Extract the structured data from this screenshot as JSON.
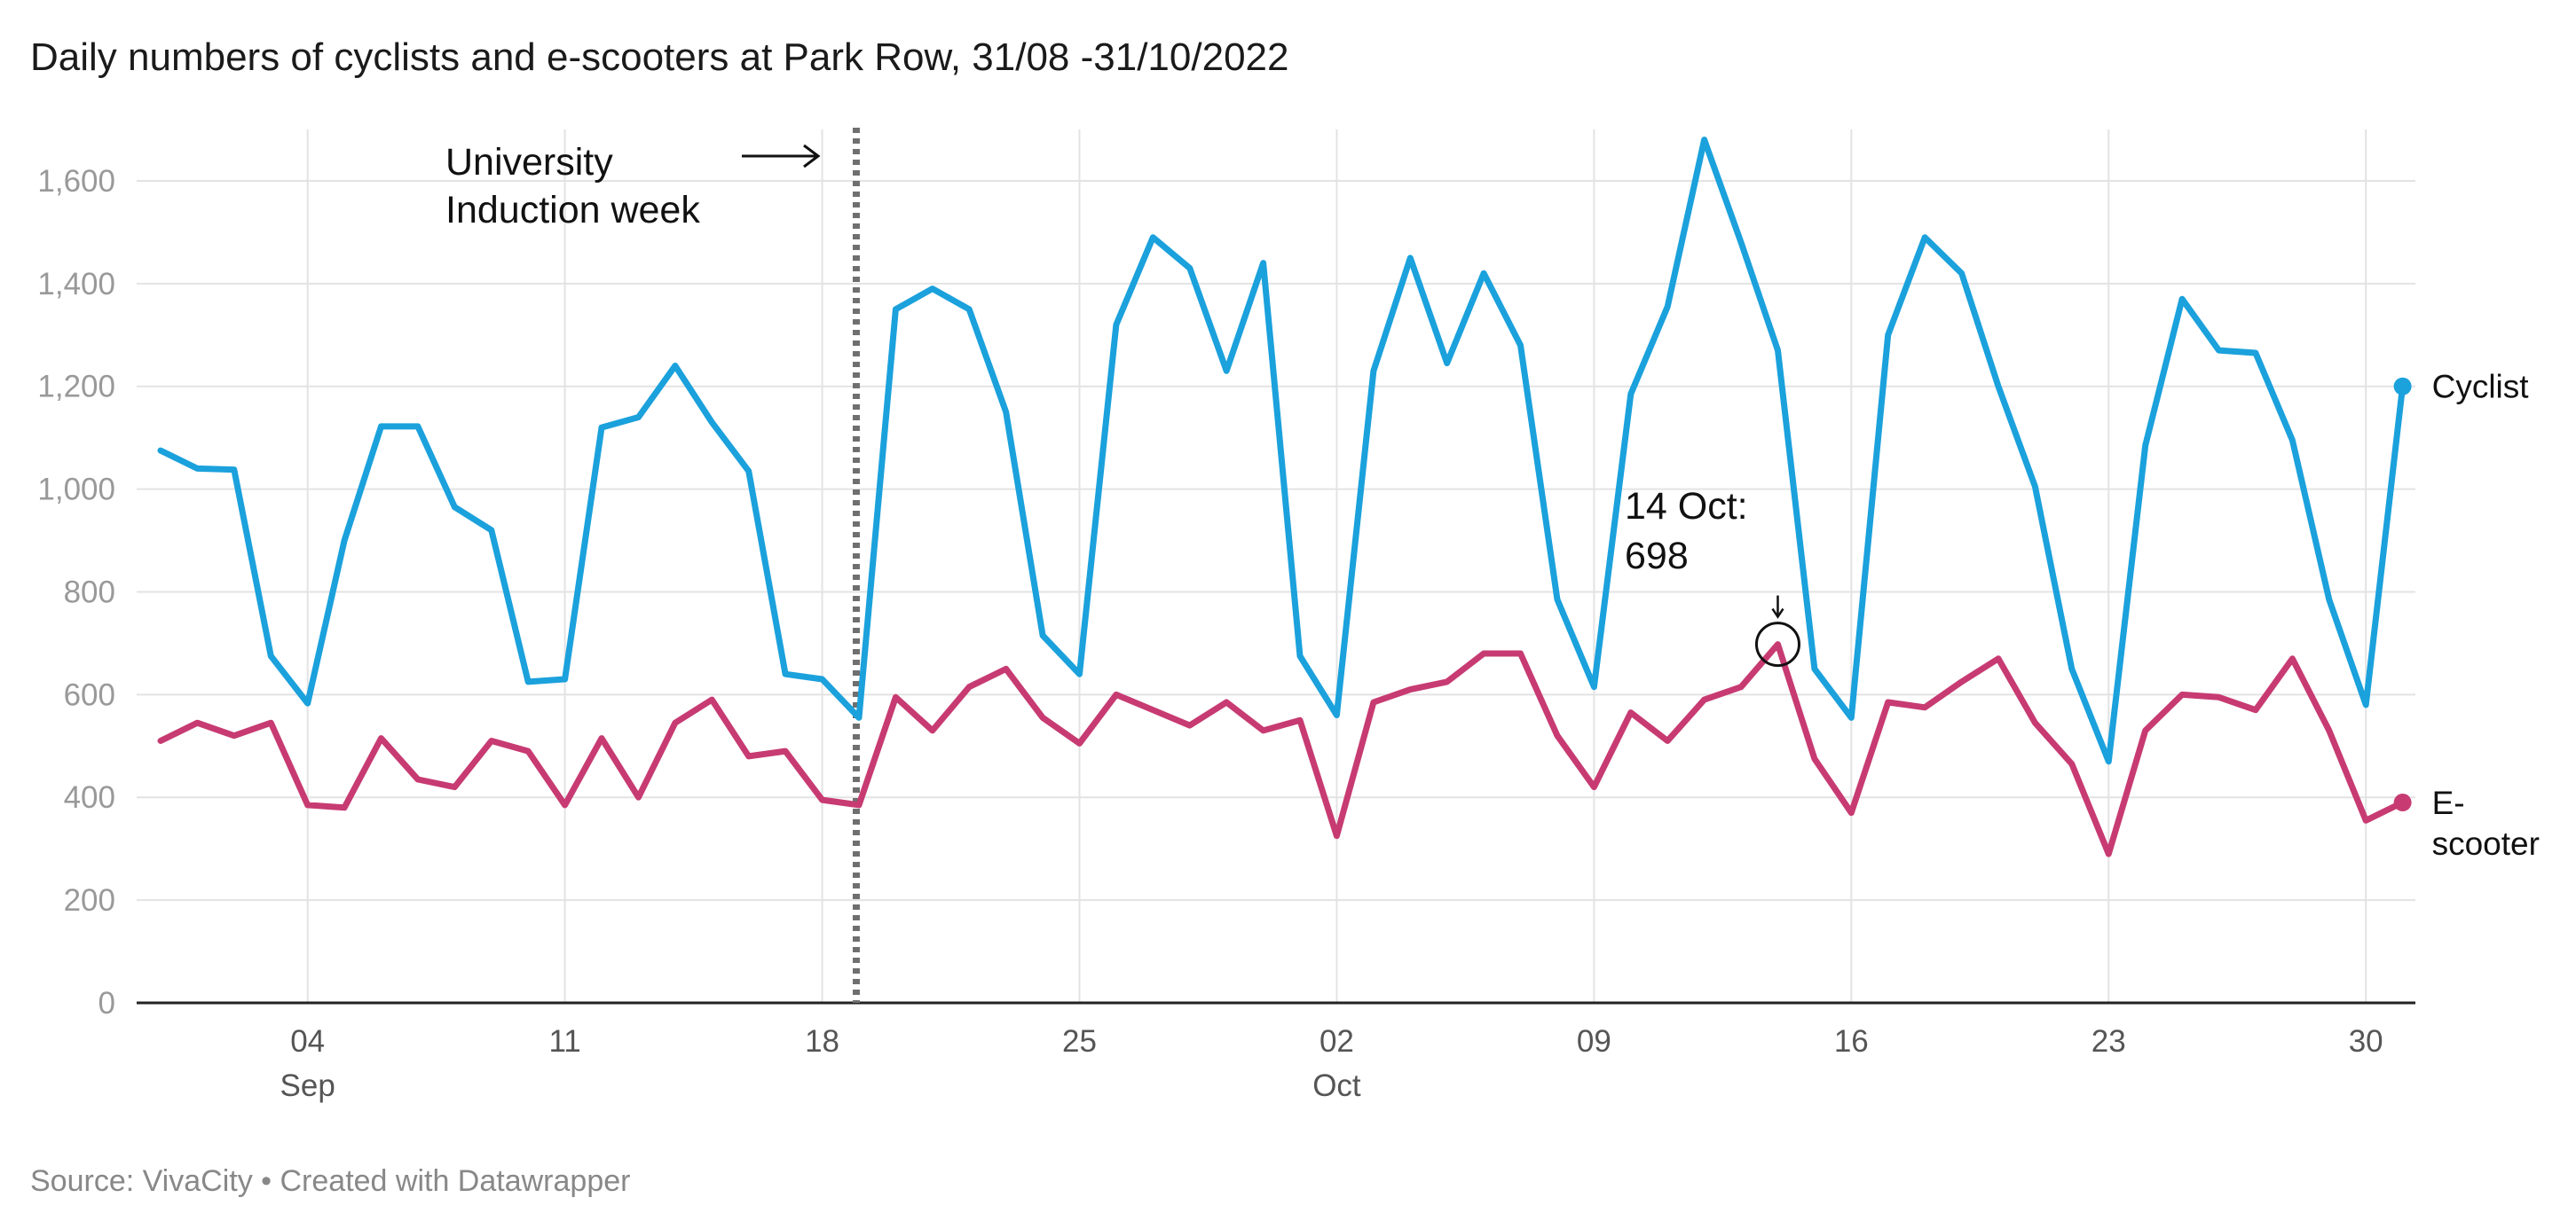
{
  "chart_data": {
    "type": "line",
    "title": "Daily numbers of cyclists and e-scooters at Park Row, 31/08 -31/10/2022",
    "source": "Source: VivaCity • Created with Datawrapper",
    "xlabel": "",
    "ylabel": "",
    "ylim": [
      0,
      1700
    ],
    "yticks": [
      0,
      200,
      400,
      600,
      800,
      1000,
      1200,
      1400,
      1600
    ],
    "ytick_labels": [
      "0",
      "200",
      "400",
      "600",
      "800",
      "1,000",
      "1,200",
      "1,400",
      "1,600"
    ],
    "x_start": "2022-08-31",
    "xticks": [
      {
        "date": "2022-09-04",
        "day": "04",
        "month": "Sep"
      },
      {
        "date": "2022-09-11",
        "day": "11",
        "month": ""
      },
      {
        "date": "2022-09-18",
        "day": "18",
        "month": ""
      },
      {
        "date": "2022-09-25",
        "day": "25",
        "month": ""
      },
      {
        "date": "2022-10-02",
        "day": "02",
        "month": "Oct"
      },
      {
        "date": "2022-10-09",
        "day": "09",
        "month": ""
      },
      {
        "date": "2022-10-16",
        "day": "16",
        "month": ""
      },
      {
        "date": "2022-10-23",
        "day": "23",
        "month": ""
      },
      {
        "date": "2022-10-30",
        "day": "30",
        "month": ""
      }
    ],
    "series": [
      {
        "name": "Cyclist",
        "color": "#1ba1dc",
        "values": [
          1075,
          1040,
          1038,
          675,
          583,
          900,
          1122,
          1122,
          965,
          920,
          625,
          630,
          1120,
          1140,
          1240,
          1130,
          1035,
          640,
          630,
          555,
          1350,
          1390,
          1350,
          1150,
          715,
          640,
          1320,
          1490,
          1430,
          1230,
          1440,
          675,
          560,
          1230,
          1450,
          1245,
          1420,
          1280,
          785,
          615,
          1185,
          1355,
          1680,
          1480,
          1270,
          650,
          555,
          1300,
          1490,
          1420,
          1200,
          1005,
          650,
          470,
          1085,
          1370,
          1270,
          1265,
          1095,
          785,
          580,
          1200
        ]
      },
      {
        "name": "E-scooter",
        "color": "#c73b72",
        "values": [
          510,
          545,
          520,
          545,
          385,
          380,
          515,
          435,
          420,
          510,
          490,
          385,
          515,
          400,
          545,
          590,
          480,
          490,
          395,
          385,
          595,
          530,
          615,
          650,
          555,
          505,
          600,
          570,
          540,
          585,
          530,
          550,
          325,
          585,
          610,
          625,
          680,
          680,
          520,
          420,
          565,
          510,
          590,
          615,
          698,
          475,
          370,
          585,
          575,
          625,
          670,
          545,
          465,
          290,
          530,
          600,
          595,
          570,
          670,
          530,
          355,
          390
        ]
      }
    ],
    "annotations": {
      "induction_date": "2022-09-19",
      "induction_line1": "University",
      "induction_line2": "Induction week",
      "peak_date": "2022-10-14",
      "peak_value": 698,
      "peak_line1": "14 Oct:",
      "peak_line2": "698"
    },
    "legend": [
      {
        "label_line1": "Cyclist",
        "label_line2": ""
      },
      {
        "label_line1": "E-",
        "label_line2": "scooter"
      }
    ],
    "grid": true,
    "legend_placement": "right-end-labels"
  }
}
